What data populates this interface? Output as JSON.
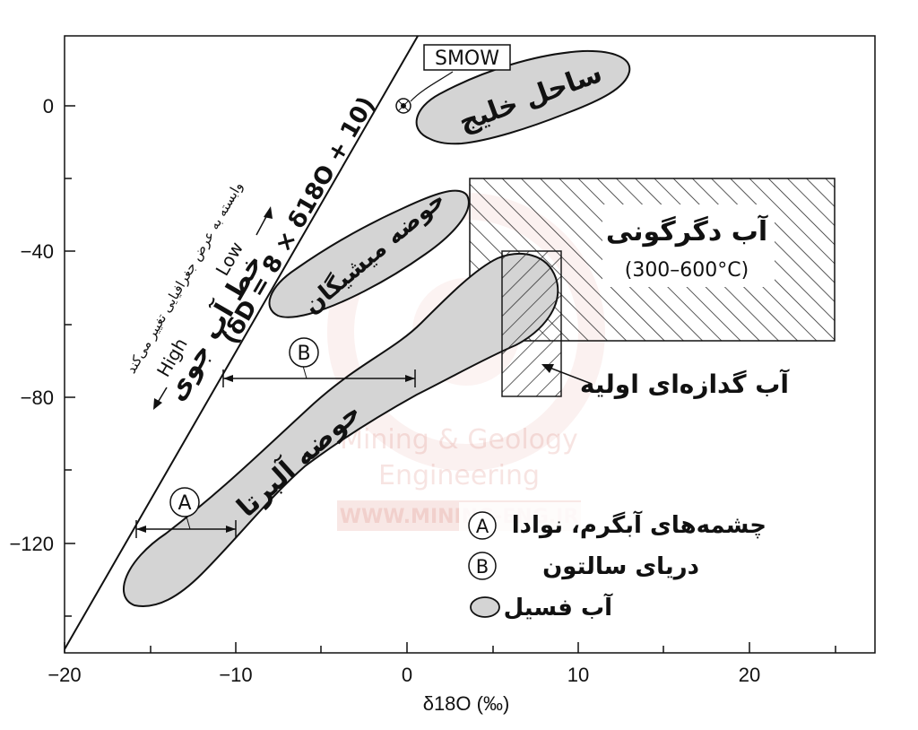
{
  "axes": {
    "xlabel": "δ18O (‰)",
    "x_ticks": [
      "−20",
      "−10",
      "0",
      "10",
      "20"
    ],
    "y_ticks": [
      "0",
      "−40",
      "−80",
      "−120"
    ],
    "xlim": [
      -20,
      27
    ],
    "ylim": [
      -150,
      20
    ]
  },
  "meteoric_line": {
    "equation": "(δD = 8 × δ18O + 10)",
    "name": "خط آب جوی",
    "low_label": "Low",
    "high_label": "High",
    "note": "وابسته به عرض جغرافیایی تغییر می‌کند"
  },
  "smow": {
    "label": "SMOW",
    "x": 0,
    "y": 0
  },
  "regions": {
    "gulf_coast": "ساحل خلیج",
    "michigan_basin": "حوضه میشیگان",
    "alberta_basin": "حوضه آلبرتا",
    "metamorphic_water": "آب دگرگونی",
    "metamorphic_range": "(300–600°C)",
    "primary_magmatic_water": "آب گدازه‌ای اولیه"
  },
  "ranges": {
    "A": {
      "label": "A",
      "x": [
        -15.8,
        -10
      ]
    },
    "B": {
      "label": "B",
      "x": [
        -10,
        0.5
      ]
    }
  },
  "legend": {
    "A": "چشمه‌های آبگرم، نوادا",
    "B": "دریای سالتون",
    "fossil": "آب فسیل"
  },
  "watermark": {
    "line1": "Mining & Geology",
    "line2": "Engineering",
    "line3": "WWW.MINING-ENG.IR"
  }
}
